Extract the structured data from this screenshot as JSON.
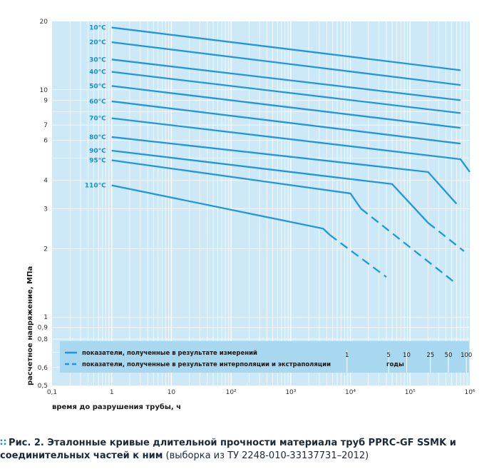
{
  "chart_data": {
    "type": "line",
    "title": "",
    "xlabel": "время до разрушения трубы, ч",
    "ylabel": "расчетное напряжение, МПа",
    "xscale": "log",
    "yscale": "log",
    "xlim": [
      0.1,
      1000000
    ],
    "ylim": [
      0.5,
      20
    ],
    "x_ticks": [
      {
        "v": 0.1,
        "l": "0,1"
      },
      {
        "v": 1,
        "l": "1"
      },
      {
        "v": 10,
        "l": "10"
      },
      {
        "v": 100,
        "l": "10²"
      },
      {
        "v": 1000,
        "l": "10³"
      },
      {
        "v": 10000,
        "l": "10⁴"
      },
      {
        "v": 100000,
        "l": "10⁵"
      },
      {
        "v": 1000000,
        "l": "10⁶"
      }
    ],
    "y_ticks": [
      {
        "v": 20,
        "l": "20"
      },
      {
        "v": 10,
        "l": "10"
      },
      {
        "v": 9,
        "l": "9"
      },
      {
        "v": 7,
        "l": "7"
      },
      {
        "v": 6,
        "l": "6"
      },
      {
        "v": 4,
        "l": "4"
      },
      {
        "v": 3,
        "l": "3"
      },
      {
        "v": 2,
        "l": "2"
      },
      {
        "v": 1,
        "l": "1"
      },
      {
        "v": 0.9,
        "l": "0,9"
      },
      {
        "v": 0.8,
        "l": "0,8"
      },
      {
        "v": 0.6,
        "l": "0,6"
      },
      {
        "v": 0.5,
        "l": "0,5"
      }
    ],
    "years_axis": {
      "label": "годы",
      "ticks": [
        {
          "years": 1,
          "l": "1"
        },
        {
          "years": 5,
          "l": "5"
        },
        {
          "years": 10,
          "l": "10"
        },
        {
          "years": 25,
          "l": "25"
        },
        {
          "years": 50,
          "l": "50"
        },
        {
          "years": 100,
          "l": "100"
        }
      ]
    },
    "series": [
      {
        "name": "10°C",
        "measured": [
          [
            1.0,
            18.8
          ],
          [
            700000,
            12.2
          ]
        ],
        "extrapolated": []
      },
      {
        "name": "20°C",
        "measured": [
          [
            1.0,
            16.2
          ],
          [
            700000,
            10.5
          ]
        ],
        "extrapolated": []
      },
      {
        "name": "30°C",
        "measured": [
          [
            1.0,
            13.6
          ],
          [
            700000,
            9.0
          ]
        ],
        "extrapolated": []
      },
      {
        "name": "40°C",
        "measured": [
          [
            1.0,
            12.0
          ],
          [
            700000,
            7.9
          ]
        ],
        "extrapolated": []
      },
      {
        "name": "50°C",
        "measured": [
          [
            1.0,
            10.4
          ],
          [
            700000,
            6.8
          ]
        ],
        "extrapolated": []
      },
      {
        "name": "60°C",
        "measured": [
          [
            1.0,
            8.9
          ],
          [
            700000,
            5.8
          ]
        ],
        "extrapolated": []
      },
      {
        "name": "70°C",
        "measured": [
          [
            1.0,
            7.5
          ],
          [
            700000,
            4.95
          ],
          [
            1000000,
            4.35
          ]
        ],
        "extrapolated": []
      },
      {
        "name": "80°C",
        "measured": [
          [
            1.0,
            6.2
          ],
          [
            200000,
            4.35
          ],
          [
            600000,
            3.15
          ]
        ],
        "extrapolated": []
      },
      {
        "name": "90°C",
        "measured": [
          [
            1.0,
            5.4
          ],
          [
            50000,
            3.85
          ],
          [
            200000,
            2.6
          ]
        ],
        "extrapolated": [
          [
            200000,
            2.6
          ],
          [
            800000,
            1.95
          ]
        ]
      },
      {
        "name": "95°C",
        "measured": [
          [
            1.0,
            4.9
          ],
          [
            10000,
            3.5
          ],
          [
            15000,
            3.0
          ]
        ],
        "extrapolated": [
          [
            15000,
            3.0
          ],
          [
            600000,
            1.4
          ]
        ]
      },
      {
        "name": "110°C",
        "measured": [
          [
            1.0,
            3.8
          ],
          [
            3500,
            2.45
          ],
          [
            4500,
            2.3
          ]
        ],
        "extrapolated": [
          [
            4500,
            2.3
          ],
          [
            40000,
            1.5
          ]
        ]
      }
    ],
    "legend": [
      {
        "style": "solid",
        "label": "показатели, полученные в результате измерений"
      },
      {
        "style": "dashed",
        "label": "показатели, полученные в результате интерполяции и экстраполяции"
      }
    ],
    "colors": {
      "plot_bg": "#cde9f7",
      "grid": "#ffffff",
      "line": "#2196e0",
      "label": "#1a8fd6",
      "legend_bg": "#a8d7f0"
    }
  },
  "caption": {
    "marker": "∷",
    "bold": "Рис. 2. Эталонные кривые длительной прочности материала труб PPRC-GF SSMK и соединительных частей к ним",
    "normal": " (выборка из ТУ 2248-010-33137731–2012)"
  }
}
